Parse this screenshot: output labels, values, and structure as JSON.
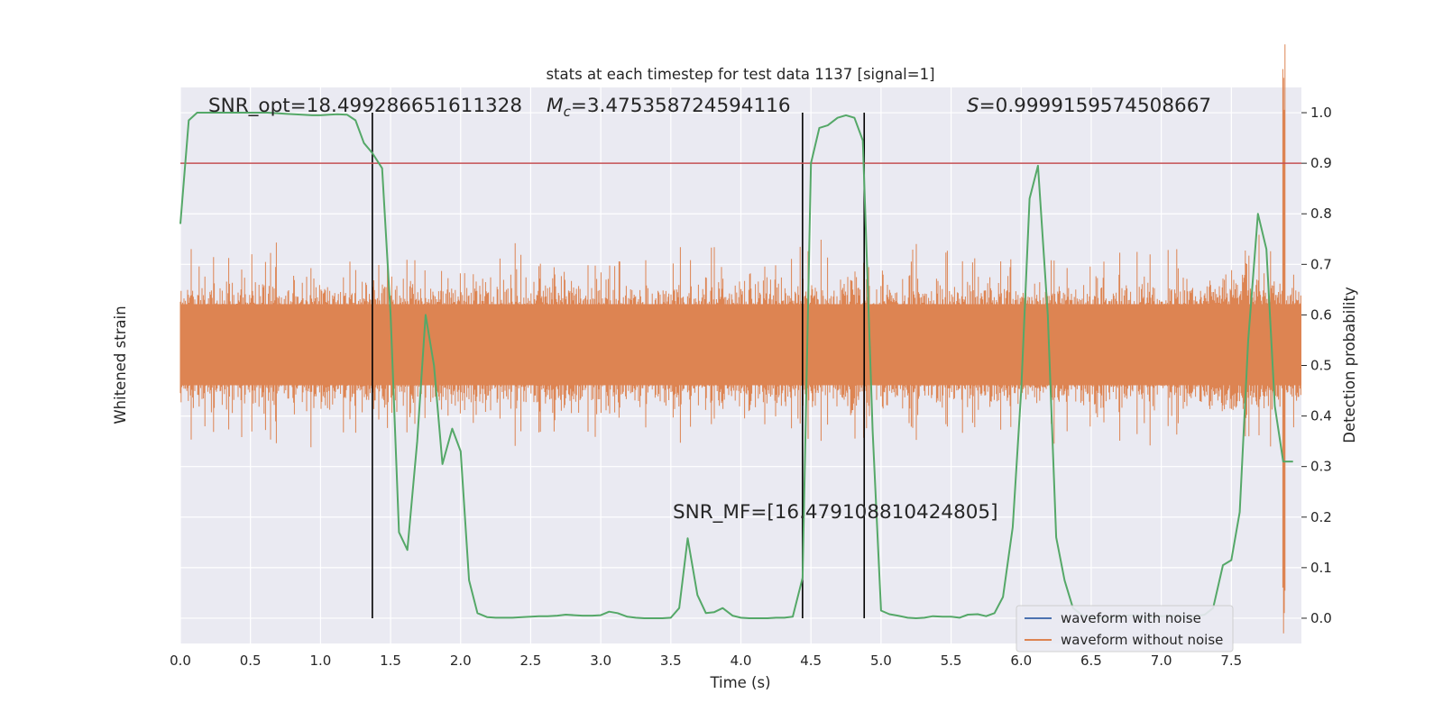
{
  "chart_data": {
    "type": "line",
    "title": "stats at each timestep for test data 1137 [signal=1]",
    "xlabel": "Time (s)",
    "ylabel_left": "Whitened strain",
    "ylabel_right": "Detection probability",
    "xlim": [
      0.0,
      8.0
    ],
    "ylim_right": [
      -0.05,
      1.05
    ],
    "x_ticks": [
      "0.0",
      "0.5",
      "1.0",
      "1.5",
      "2.0",
      "2.5",
      "3.0",
      "3.5",
      "4.0",
      "4.5",
      "5.0",
      "5.5",
      "6.0",
      "6.5",
      "7.0",
      "7.5"
    ],
    "y_ticks_right": [
      "0.0",
      "0.1",
      "0.2",
      "0.3",
      "0.4",
      "0.5",
      "0.6",
      "0.7",
      "0.8",
      "0.9",
      "1.0"
    ],
    "grid": true,
    "legend_position": "lower right",
    "legend": [
      "waveform with noise",
      "waveform without noise"
    ],
    "colors": {
      "background": "#eaeaf2",
      "grid": "#ffffff",
      "noise_waveform": "#4c72b0",
      "clean_waveform": "#dd8452",
      "probability": "#55a868",
      "threshold": "#c44e52",
      "markers": "#000000"
    },
    "annotations": {
      "snr_opt": "SNR_opt=18.499286651611328",
      "mc_symbol": "M",
      "mc_subscript": "c",
      "mc_value": "=3.475358724594116",
      "s_symbol": "S",
      "s_value": "=0.9999159574508667",
      "snr_mf": "SNR_MF=[16.479108810424805]"
    },
    "threshold": 0.9,
    "vertical_markers": [
      1.37,
      4.44,
      4.88
    ],
    "detection_probability": {
      "x": [
        0.0,
        0.06,
        0.12,
        0.19,
        0.25,
        0.31,
        0.37,
        0.44,
        0.5,
        0.56,
        0.62,
        0.69,
        0.75,
        0.81,
        0.87,
        0.94,
        1.0,
        1.06,
        1.12,
        1.19,
        1.25,
        1.31,
        1.37,
        1.44,
        1.5,
        1.56,
        1.62,
        1.69,
        1.75,
        1.81,
        1.87,
        1.94,
        2.0,
        2.06,
        2.12,
        2.19,
        2.25,
        2.31,
        2.37,
        2.44,
        2.5,
        2.56,
        2.62,
        2.69,
        2.75,
        2.81,
        2.87,
        2.94,
        3.0,
        3.06,
        3.12,
        3.19,
        3.25,
        3.31,
        3.37,
        3.44,
        3.5,
        3.56,
        3.62,
        3.69,
        3.75,
        3.81,
        3.87,
        3.94,
        4.0,
        4.06,
        4.12,
        4.19,
        4.25,
        4.31,
        4.37,
        4.44,
        4.5,
        4.56,
        4.62,
        4.69,
        4.75,
        4.81,
        4.87,
        4.94,
        5.0,
        5.06,
        5.12,
        5.19,
        5.25,
        5.31,
        5.37,
        5.44,
        5.5,
        5.56,
        5.62,
        5.69,
        5.75,
        5.81,
        5.87,
        5.94,
        6.0,
        6.06,
        6.12,
        6.19,
        6.25,
        6.31,
        6.37,
        6.44,
        6.5,
        6.56,
        6.62,
        6.69,
        6.75,
        6.81,
        6.87,
        6.94,
        7.0,
        7.06,
        7.12,
        7.19,
        7.25,
        7.31,
        7.37,
        7.44,
        7.5,
        7.56,
        7.62,
        7.69,
        7.75,
        7.81,
        7.87,
        7.94
      ],
      "y": [
        0.78,
        0.985,
        1.0,
        1.0,
        1.0,
        1.0,
        1.0,
        1.0,
        1.0,
        1.0,
        1.0,
        0.999,
        0.998,
        0.997,
        0.996,
        0.995,
        0.995,
        0.996,
        0.997,
        0.996,
        0.985,
        0.94,
        0.92,
        0.89,
        0.6,
        0.17,
        0.135,
        0.35,
        0.6,
        0.5,
        0.305,
        0.375,
        0.33,
        0.075,
        0.01,
        0.002,
        0.001,
        0.001,
        0.001,
        0.002,
        0.003,
        0.004,
        0.004,
        0.005,
        0.007,
        0.006,
        0.005,
        0.005,
        0.006,
        0.013,
        0.01,
        0.003,
        0.001,
        0.0,
        0.0,
        0.0,
        0.001,
        0.02,
        0.158,
        0.046,
        0.01,
        0.012,
        0.02,
        0.005,
        0.001,
        0.0,
        0.0,
        0.0,
        0.001,
        0.001,
        0.003,
        0.08,
        0.9,
        0.97,
        0.975,
        0.99,
        0.995,
        0.99,
        0.945,
        0.37,
        0.015,
        0.008,
        0.005,
        0.001,
        0.0,
        0.001,
        0.004,
        0.003,
        0.003,
        0.001,
        0.007,
        0.008,
        0.004,
        0.01,
        0.042,
        0.18,
        0.45,
        0.83,
        0.895,
        0.6,
        0.16,
        0.075,
        0.02,
        0.005,
        0.002,
        0.001,
        0.002,
        0.003,
        0.005,
        0.006,
        0.002,
        0.003,
        0.004,
        0.005,
        0.005,
        0.003,
        0.004,
        0.007,
        0.02,
        0.105,
        0.115,
        0.21,
        0.55,
        0.8,
        0.73,
        0.42,
        0.31,
        0.31
      ]
    },
    "series": [
      {
        "name": "waveform with noise",
        "values": []
      },
      {
        "name": "waveform without noise",
        "values": []
      }
    ]
  }
}
